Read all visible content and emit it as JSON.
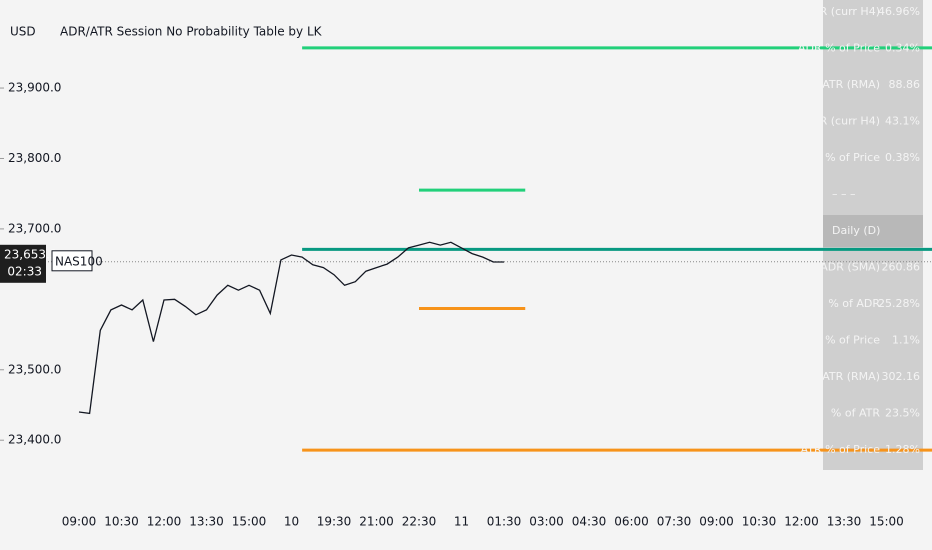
{
  "chart_data": {
    "type": "line",
    "currency": "USD",
    "title": "ADR/ATR Session No Probability Table by LK",
    "categories": [
      "09:00",
      null,
      null,
      null,
      "10:30",
      null,
      null,
      null,
      "12:00",
      null,
      null,
      null,
      "13:30",
      null,
      null,
      null,
      "15:00",
      null,
      null,
      null,
      "10",
      null,
      null,
      null,
      "19:30",
      null,
      null,
      null,
      "21:00",
      null,
      null,
      null,
      "22:30",
      null,
      null,
      null,
      "11",
      null,
      null,
      null,
      "01:30",
      null,
      null,
      null,
      "03:00",
      null,
      null,
      null,
      "04:30",
      null,
      null,
      null,
      "06:00",
      null,
      null,
      null,
      "07:30",
      null,
      null,
      null,
      "09:00",
      null,
      null,
      null,
      "10:30",
      null,
      null,
      null,
      "12:00",
      null,
      null,
      null,
      "13:30",
      null,
      null,
      null,
      "15:00",
      null,
      null,
      null
    ],
    "series": [
      {
        "name": "NAS100",
        "color": "#131722",
        "values": [
          23440,
          23438,
          23556,
          23585,
          23592,
          23585,
          23599,
          23540,
          23599,
          23600,
          23590,
          23578,
          23585,
          23606,
          23620,
          23613,
          23620,
          23613,
          23580,
          23656,
          23663,
          23660,
          23649,
          23645,
          23635,
          23620,
          23625,
          23640,
          23645,
          23650,
          23660,
          23673,
          23677,
          23681,
          23677,
          23681,
          23673,
          23665,
          23660,
          23653,
          23653,
          null,
          null,
          null,
          null,
          null,
          null,
          null,
          null,
          null,
          null,
          null,
          null,
          null,
          null,
          null,
          null,
          null,
          null,
          null,
          null,
          null,
          null,
          null,
          null,
          null,
          null,
          null,
          null,
          null,
          null,
          null,
          null,
          null,
          null,
          null,
          null,
          null,
          null,
          null
        ]
      }
    ],
    "last_price": {
      "value": 23653.3,
      "label": "23,653.3"
    },
    "countdown": "02:33",
    "ylim": [
      23308,
      24025
    ],
    "yticks": [
      {
        "value": 23400,
        "label": "23,400.0"
      },
      {
        "value": 23500,
        "label": "23,500.0"
      },
      {
        "value": 23700,
        "label": "23,700.0"
      },
      {
        "value": 23800,
        "label": "23,800.0"
      },
      {
        "value": 23900,
        "label": "23,900.0"
      }
    ],
    "levels": [
      {
        "value": 23957,
        "color": "#22d07a",
        "from": 21
      },
      {
        "value": 23755,
        "color": "#22d07a",
        "from": 32,
        "to": 42
      },
      {
        "value": 23671,
        "color": "#089981",
        "from": 21
      },
      {
        "value": 23587,
        "color": "#f7931a",
        "from": 32,
        "to": 42
      },
      {
        "value": 23386,
        "color": "#f7931a",
        "from": 21
      }
    ]
  },
  "table": {
    "rows": [
      [
        "% of ADR (curr H4)",
        "46.96%"
      ],
      [
        "ADR % of Price",
        "0.34%"
      ],
      [
        "ATR (RMA)",
        "88.86"
      ],
      [
        "% of ATR (curr H4)",
        "43.1%"
      ],
      [
        "ATR % of Price",
        "0.38%"
      ],
      [
        "– – –"
      ],
      [
        "Daily (D)"
      ],
      [
        "ADR (SMA)",
        "260.86"
      ],
      [
        "% of ADR",
        "25.28%"
      ],
      [
        "ADR % of Price",
        "1.1%"
      ],
      [
        "ATR (RMA)",
        "302.16"
      ],
      [
        "% of ATR",
        "23.5%"
      ],
      [
        "ATR % of Price",
        "1.28%"
      ]
    ]
  }
}
